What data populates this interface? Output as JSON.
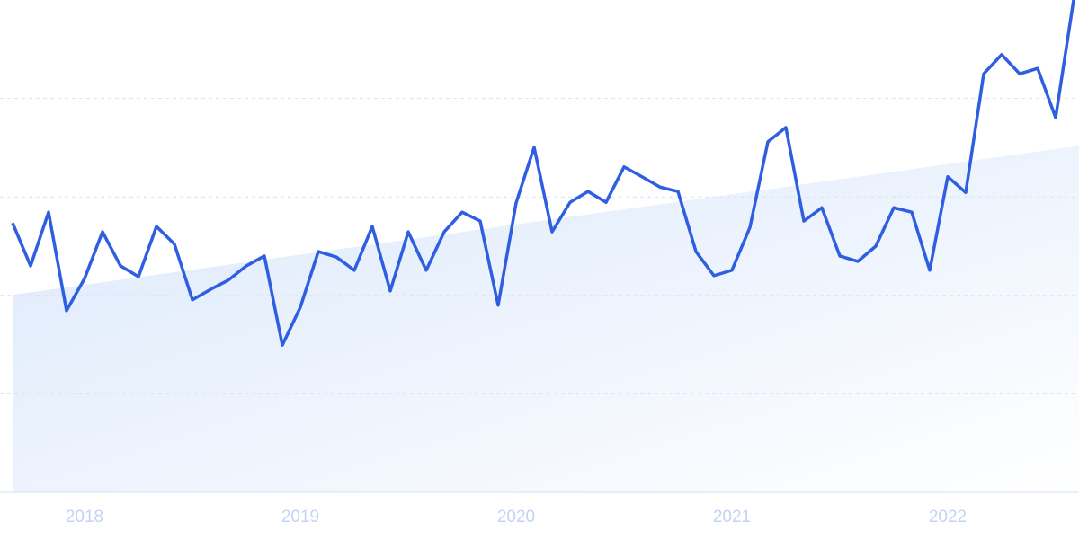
{
  "chart_data": {
    "type": "line",
    "categories": [
      null,
      null,
      null,
      null,
      "2018",
      null,
      null,
      null,
      null,
      null,
      null,
      null,
      null,
      null,
      null,
      null,
      "2019",
      null,
      null,
      null,
      null,
      null,
      null,
      null,
      null,
      null,
      null,
      null,
      "2020",
      null,
      null,
      null,
      null,
      null,
      null,
      null,
      null,
      null,
      null,
      null,
      "2021",
      null,
      null,
      null,
      null,
      null,
      null,
      null,
      null,
      null,
      null,
      null,
      "2022",
      null,
      null,
      null,
      null,
      null,
      null,
      null
    ],
    "series": [
      {
        "color": "#2f5fe0",
        "values": [
          54.7,
          46.0,
          56.9,
          36.9,
          43.4,
          52.9,
          46.0,
          43.8,
          54.0,
          50.4,
          39.1,
          41.2,
          43.1,
          46.0,
          48.0,
          29.9,
          37.6,
          48.9,
          47.8,
          45.1,
          54.0,
          40.9,
          52.9,
          45.1,
          52.9,
          56.9,
          55.1,
          38.0,
          58.8,
          70.1,
          52.9,
          58.9,
          61.1,
          58.9,
          66.1,
          64.1,
          62.0,
          61.1,
          48.9,
          44.0,
          45.1,
          53.8,
          71.2,
          74.1,
          55.1,
          57.8,
          48.0,
          46.9,
          50.0,
          57.8,
          56.9,
          45.1,
          64.1,
          60.9,
          85.0,
          88.9,
          85.0,
          86.1,
          76.1,
          100
        ]
      }
    ],
    "trend": {
      "color": "#dbe8fb",
      "values": [
        40.1,
        70.4
      ]
    },
    "ylim": [
      0,
      100
    ],
    "yticks": [
      20,
      40,
      60,
      80
    ],
    "grid": true
  }
}
